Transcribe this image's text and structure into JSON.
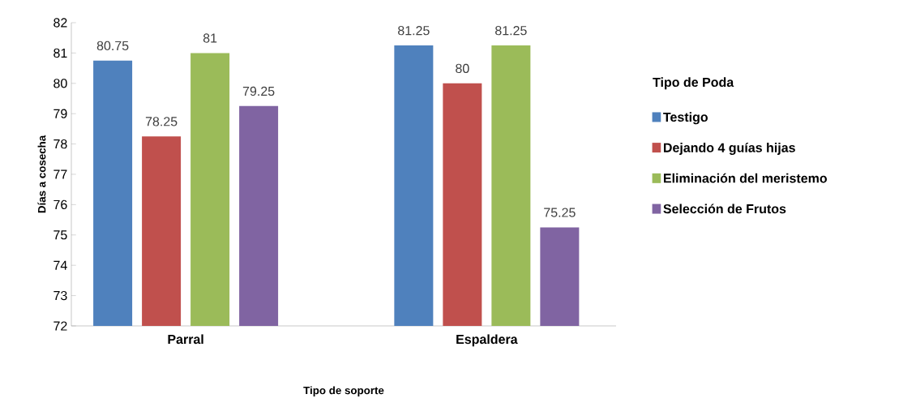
{
  "chart_data": {
    "type": "bar",
    "xlabel": "Tipo de soporte",
    "ylabel": "Días a cosecha",
    "legend_title": "Tipo de Poda",
    "categories": [
      "Parral",
      "Espaldera"
    ],
    "series": [
      {
        "name": "Testigo",
        "color": "#4f81bd",
        "values": [
          80.75,
          81.25
        ]
      },
      {
        "name": "Dejando 4 guías hijas",
        "color": "#c0504d",
        "values": [
          78.25,
          80
        ]
      },
      {
        "name": "Eliminación del meristemo",
        "color": "#9bbb59",
        "values": [
          81,
          81.25
        ]
      },
      {
        "name": "Selección de Frutos",
        "color": "#8064a2",
        "values": [
          79.25,
          75.25
        ]
      }
    ],
    "ylim": [
      72,
      82
    ],
    "yticks": [
      72,
      73,
      74,
      75,
      76,
      77,
      78,
      79,
      80,
      81,
      82
    ],
    "data_labels": true,
    "grid": false,
    "legend": "right"
  }
}
